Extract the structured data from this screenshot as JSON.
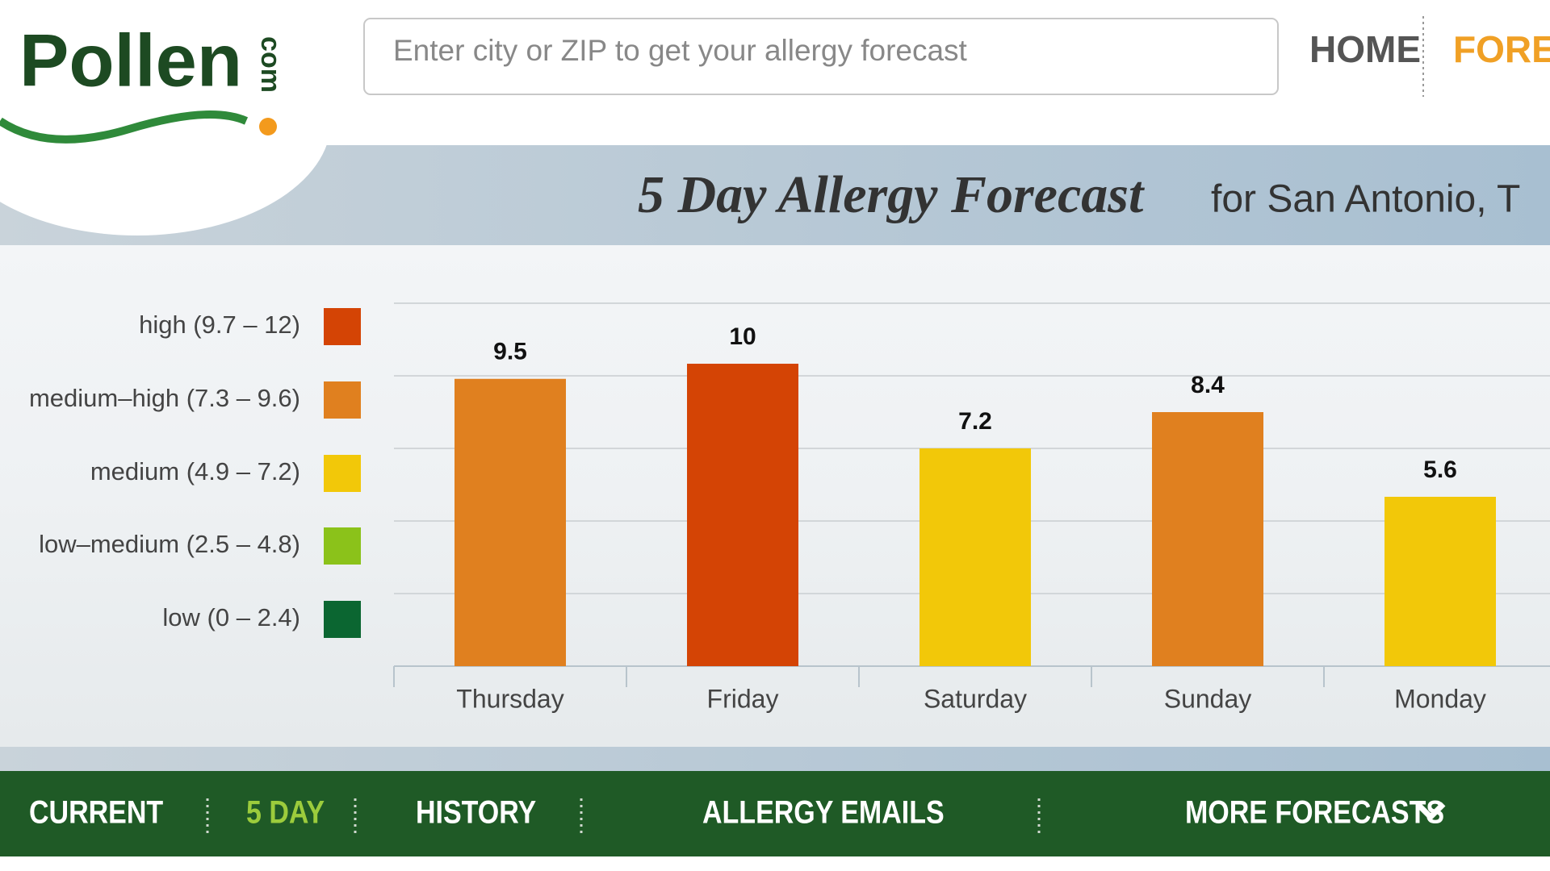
{
  "header": {
    "logo": "Pollen",
    "logo_suffix": "com",
    "search_placeholder": "Enter city or ZIP to get your allergy forecast",
    "nav": [
      "HOME",
      "FOREC"
    ]
  },
  "title": {
    "main": "5 Day Allergy Forecast",
    "location": "for San Antonio, T"
  },
  "legend": [
    {
      "label": "high (9.7 – 12)",
      "color": "#d44405"
    },
    {
      "label": "medium–high (7.3 – 9.6)",
      "color": "#e0801f"
    },
    {
      "label": "medium (4.9 – 7.2)",
      "color": "#f2c809"
    },
    {
      "label": "low–medium (2.5 – 4.8)",
      "color": "#8bc21a"
    },
    {
      "label": "low (0 – 2.4)",
      "color": "#0b6631"
    }
  ],
  "chart_data": {
    "type": "bar",
    "categories": [
      "Thursday",
      "Friday",
      "Saturday",
      "Sunday",
      "Monday"
    ],
    "values": [
      9.5,
      10,
      7.2,
      8.4,
      5.6
    ],
    "colors": [
      "#e0801f",
      "#d44405",
      "#f2c809",
      "#e0801f",
      "#f2c809"
    ],
    "ylim": [
      0,
      12
    ],
    "yticks": [
      2.4,
      4.8,
      7.2,
      9.6,
      12
    ],
    "grid": true
  },
  "tabs": [
    "CURRENT",
    "5 DAY",
    "HISTORY",
    "ALLERGY EMAILS",
    "MORE FORECASTS"
  ]
}
